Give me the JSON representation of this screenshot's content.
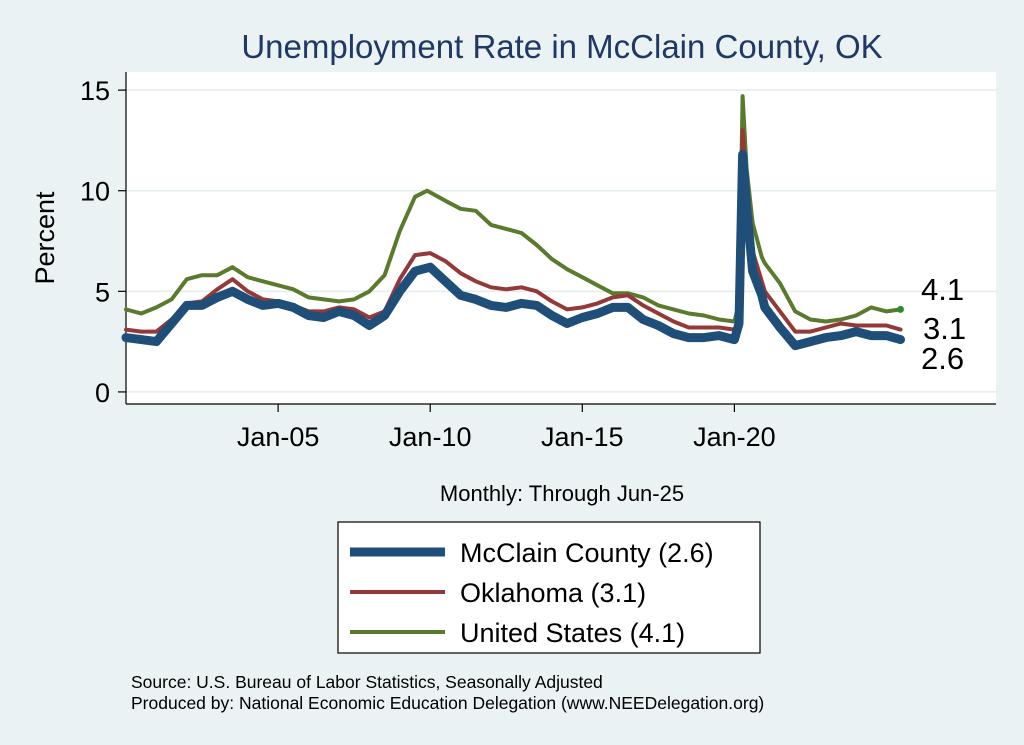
{
  "chart_data": {
    "type": "line",
    "title": "Unemployment Rate in McClain  County, OK",
    "ylabel": "Percent",
    "xlabel": "Monthly: Through Jun-25",
    "xlim": [
      2000.0,
      2028.6
    ],
    "ylim": [
      -0.6,
      15.9
    ],
    "yticks": [
      0,
      5,
      10,
      15
    ],
    "xticks": [
      {
        "x": 2005.0,
        "label": "Jan-05"
      },
      {
        "x": 2010.0,
        "label": "Jan-10"
      },
      {
        "x": 2015.0,
        "label": "Jan-15"
      },
      {
        "x": 2020.0,
        "label": "Jan-20"
      }
    ],
    "end_labels": [
      "4.1",
      "3.1",
      "2.6"
    ],
    "series": [
      {
        "name": "United States",
        "legend": "United States (4.1)",
        "color": "#5a7a2e",
        "width": 4,
        "points": [
          [
            2000.0,
            4.1
          ],
          [
            2000.5,
            3.9
          ],
          [
            2001.0,
            4.2
          ],
          [
            2001.5,
            4.6
          ],
          [
            2002.0,
            5.6
          ],
          [
            2002.5,
            5.8
          ],
          [
            2003.0,
            5.8
          ],
          [
            2003.5,
            6.2
          ],
          [
            2004.0,
            5.7
          ],
          [
            2004.5,
            5.5
          ],
          [
            2005.0,
            5.3
          ],
          [
            2005.5,
            5.1
          ],
          [
            2006.0,
            4.7
          ],
          [
            2006.5,
            4.6
          ],
          [
            2007.0,
            4.5
          ],
          [
            2007.5,
            4.6
          ],
          [
            2008.0,
            5.0
          ],
          [
            2008.5,
            5.8
          ],
          [
            2009.0,
            8.0
          ],
          [
            2009.5,
            9.7
          ],
          [
            2009.9,
            10.0
          ],
          [
            2010.5,
            9.5
          ],
          [
            2011.0,
            9.1
          ],
          [
            2011.5,
            9.0
          ],
          [
            2012.0,
            8.3
          ],
          [
            2012.5,
            8.1
          ],
          [
            2013.0,
            7.9
          ],
          [
            2013.5,
            7.3
          ],
          [
            2014.0,
            6.6
          ],
          [
            2014.5,
            6.1
          ],
          [
            2015.0,
            5.7
          ],
          [
            2015.5,
            5.3
          ],
          [
            2016.0,
            4.9
          ],
          [
            2016.5,
            4.9
          ],
          [
            2017.0,
            4.7
          ],
          [
            2017.5,
            4.3
          ],
          [
            2018.0,
            4.1
          ],
          [
            2018.5,
            3.9
          ],
          [
            2019.0,
            3.8
          ],
          [
            2019.5,
            3.6
          ],
          [
            2020.0,
            3.5
          ],
          [
            2020.15,
            4.4
          ],
          [
            2020.27,
            14.7
          ],
          [
            2020.4,
            11.1
          ],
          [
            2020.6,
            8.4
          ],
          [
            2020.9,
            6.7
          ],
          [
            2021.0,
            6.4
          ],
          [
            2021.5,
            5.4
          ],
          [
            2022.0,
            4.0
          ],
          [
            2022.5,
            3.6
          ],
          [
            2023.0,
            3.5
          ],
          [
            2023.5,
            3.6
          ],
          [
            2024.0,
            3.8
          ],
          [
            2024.5,
            4.2
          ],
          [
            2025.0,
            4.0
          ],
          [
            2025.46,
            4.1
          ]
        ]
      },
      {
        "name": "Oklahoma",
        "legend": "Oklahoma (3.1)",
        "color": "#943838",
        "width": 4,
        "points": [
          [
            2000.0,
            3.1
          ],
          [
            2000.5,
            3.0
          ],
          [
            2001.0,
            3.0
          ],
          [
            2001.5,
            3.6
          ],
          [
            2002.0,
            4.4
          ],
          [
            2002.5,
            4.5
          ],
          [
            2003.0,
            5.1
          ],
          [
            2003.5,
            5.6
          ],
          [
            2004.0,
            5.0
          ],
          [
            2004.5,
            4.6
          ],
          [
            2005.0,
            4.5
          ],
          [
            2005.5,
            4.3
          ],
          [
            2006.0,
            4.0
          ],
          [
            2006.5,
            4.0
          ],
          [
            2007.0,
            4.2
          ],
          [
            2007.5,
            4.1
          ],
          [
            2008.0,
            3.7
          ],
          [
            2008.5,
            4.0
          ],
          [
            2009.0,
            5.6
          ],
          [
            2009.5,
            6.8
          ],
          [
            2010.0,
            6.9
          ],
          [
            2010.5,
            6.5
          ],
          [
            2011.0,
            5.9
          ],
          [
            2011.5,
            5.5
          ],
          [
            2012.0,
            5.2
          ],
          [
            2012.5,
            5.1
          ],
          [
            2013.0,
            5.2
          ],
          [
            2013.5,
            5.0
          ],
          [
            2014.0,
            4.5
          ],
          [
            2014.5,
            4.1
          ],
          [
            2015.0,
            4.2
          ],
          [
            2015.5,
            4.4
          ],
          [
            2016.0,
            4.7
          ],
          [
            2016.5,
            4.8
          ],
          [
            2017.0,
            4.3
          ],
          [
            2017.5,
            3.9
          ],
          [
            2018.0,
            3.5
          ],
          [
            2018.5,
            3.2
          ],
          [
            2019.0,
            3.2
          ],
          [
            2019.5,
            3.2
          ],
          [
            2020.0,
            3.1
          ],
          [
            2020.15,
            3.5
          ],
          [
            2020.27,
            13.0
          ],
          [
            2020.4,
            10.0
          ],
          [
            2020.6,
            7.0
          ],
          [
            2020.9,
            5.5
          ],
          [
            2021.0,
            5.0
          ],
          [
            2021.5,
            4.0
          ],
          [
            2022.0,
            3.0
          ],
          [
            2022.5,
            3.0
          ],
          [
            2023.0,
            3.2
          ],
          [
            2023.5,
            3.4
          ],
          [
            2024.0,
            3.3
          ],
          [
            2024.5,
            3.3
          ],
          [
            2025.0,
            3.3
          ],
          [
            2025.46,
            3.1
          ]
        ]
      },
      {
        "name": "McClain  County",
        "legend": "McClain  County (2.6)",
        "color": "#1f4e79",
        "width": 9,
        "points": [
          [
            2000.0,
            2.7
          ],
          [
            2000.5,
            2.6
          ],
          [
            2001.0,
            2.5
          ],
          [
            2001.5,
            3.4
          ],
          [
            2002.0,
            4.3
          ],
          [
            2002.5,
            4.3
          ],
          [
            2003.0,
            4.7
          ],
          [
            2003.5,
            5.0
          ],
          [
            2004.0,
            4.6
          ],
          [
            2004.5,
            4.3
          ],
          [
            2005.0,
            4.4
          ],
          [
            2005.5,
            4.2
          ],
          [
            2006.0,
            3.8
          ],
          [
            2006.5,
            3.7
          ],
          [
            2007.0,
            4.0
          ],
          [
            2007.5,
            3.8
          ],
          [
            2008.0,
            3.3
          ],
          [
            2008.5,
            3.8
          ],
          [
            2009.0,
            5.0
          ],
          [
            2009.5,
            6.0
          ],
          [
            2010.0,
            6.2
          ],
          [
            2010.5,
            5.5
          ],
          [
            2011.0,
            4.8
          ],
          [
            2011.5,
            4.6
          ],
          [
            2012.0,
            4.3
          ],
          [
            2012.5,
            4.2
          ],
          [
            2013.0,
            4.4
          ],
          [
            2013.5,
            4.3
          ],
          [
            2014.0,
            3.8
          ],
          [
            2014.5,
            3.4
          ],
          [
            2015.0,
            3.7
          ],
          [
            2015.5,
            3.9
          ],
          [
            2016.0,
            4.2
          ],
          [
            2016.5,
            4.2
          ],
          [
            2017.0,
            3.6
          ],
          [
            2017.5,
            3.3
          ],
          [
            2018.0,
            2.9
          ],
          [
            2018.5,
            2.7
          ],
          [
            2019.0,
            2.7
          ],
          [
            2019.5,
            2.8
          ],
          [
            2020.0,
            2.6
          ],
          [
            2020.15,
            3.4
          ],
          [
            2020.27,
            11.8
          ],
          [
            2020.4,
            9.2
          ],
          [
            2020.6,
            6.0
          ],
          [
            2020.9,
            4.8
          ],
          [
            2021.0,
            4.2
          ],
          [
            2021.5,
            3.2
          ],
          [
            2022.0,
            2.3
          ],
          [
            2022.5,
            2.5
          ],
          [
            2023.0,
            2.7
          ],
          [
            2023.5,
            2.8
          ],
          [
            2024.0,
            3.0
          ],
          [
            2024.5,
            2.8
          ],
          [
            2025.0,
            2.8
          ],
          [
            2025.46,
            2.6
          ]
        ]
      }
    ]
  },
  "legend_order": [
    "McClain  County (2.6)",
    "Oklahoma (3.1)",
    "United States (4.1)"
  ],
  "source_line1": "Source: U.S. Bureau of Labor Statistics, Seasonally Adjusted",
  "source_line2": "Produced by: National Economic Education Delegation (www.NEEDelegation.org)"
}
